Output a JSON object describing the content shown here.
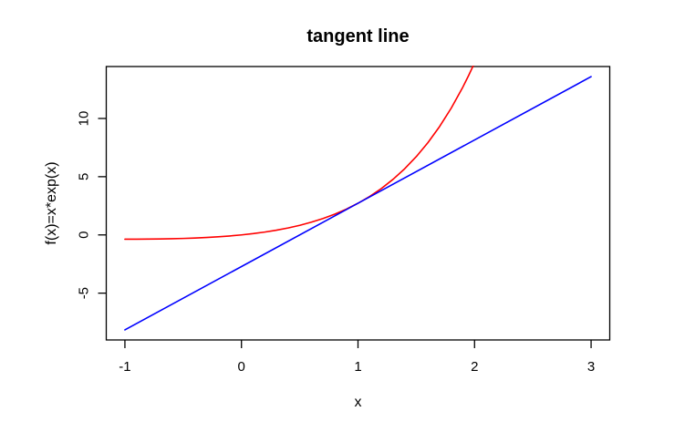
{
  "window": {
    "background": "#ffffff"
  },
  "chart_data": {
    "type": "line",
    "title": "tangent line",
    "xlabel": "x",
    "ylabel": "f(x)=x*exp(x)",
    "x_ticks": [
      -1,
      0,
      1,
      2,
      3
    ],
    "y_ticks": [
      -5,
      0,
      5,
      10
    ],
    "xlim": [
      -1.16,
      3.16
    ],
    "ylim": [
      -9.02,
      14.46
    ],
    "grid": false,
    "legend_position": "none",
    "axis_color": "#000000",
    "background": "#ffffff",
    "series": [
      {
        "name": "f(x)=x*exp(x)",
        "color": "#ff0000",
        "points": [
          [
            -1.0,
            -0.3679
          ],
          [
            -0.9,
            -0.3659
          ],
          [
            -0.8,
            -0.3595
          ],
          [
            -0.7,
            -0.3476
          ],
          [
            -0.6,
            -0.3293
          ],
          [
            -0.5,
            -0.3033
          ],
          [
            -0.4,
            -0.2681
          ],
          [
            -0.3,
            -0.2222
          ],
          [
            -0.2,
            -0.1637
          ],
          [
            -0.1,
            -0.0905
          ],
          [
            0.0,
            0.0
          ],
          [
            0.1,
            0.1105
          ],
          [
            0.2,
            0.2443
          ],
          [
            0.3,
            0.405
          ],
          [
            0.4,
            0.5967
          ],
          [
            0.5,
            0.8244
          ],
          [
            0.6,
            1.0933
          ],
          [
            0.7,
            1.4096
          ],
          [
            0.8,
            1.7804
          ],
          [
            0.9,
            2.2136
          ],
          [
            1.0,
            2.7183
          ],
          [
            1.1,
            3.3046
          ],
          [
            1.2,
            3.9841
          ],
          [
            1.3,
            4.7701
          ],
          [
            1.4,
            5.6773
          ],
          [
            1.5,
            6.7225
          ],
          [
            1.6,
            7.9248
          ],
          [
            1.7,
            9.3057
          ],
          [
            1.8,
            10.8894
          ],
          [
            1.9,
            12.7032
          ],
          [
            1.95,
            13.706
          ],
          [
            2.0,
            14.7781
          ]
        ]
      },
      {
        "name": "tangent line",
        "color": "#0000ff",
        "points": [
          [
            -1.0,
            -8.1548
          ],
          [
            3.0,
            13.5914
          ]
        ]
      }
    ]
  }
}
